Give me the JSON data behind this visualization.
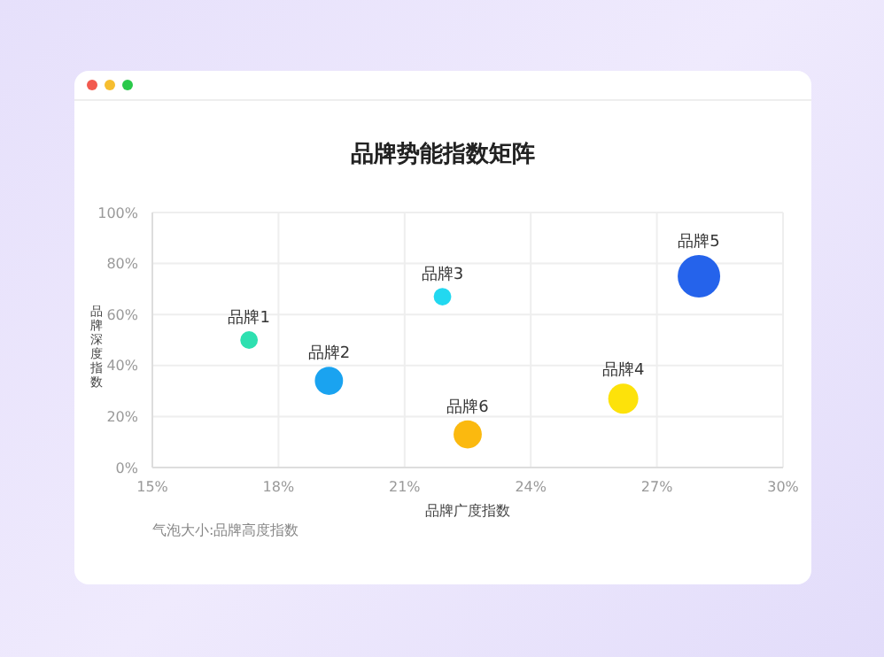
{
  "chart_data": {
    "type": "bubble",
    "title": "品牌势能指数矩阵",
    "xlabel": "品牌广度指数",
    "ylabel": "品牌深度指数",
    "annotations": [
      "气泡大小:品牌高度指数"
    ],
    "xlim": [
      15,
      30
    ],
    "xticks": [
      {
        "value": 15,
        "label": "15%"
      },
      {
        "value": 18,
        "label": "18%"
      },
      {
        "value": 21,
        "label": "21%"
      },
      {
        "value": 24,
        "label": "24%"
      },
      {
        "value": 27,
        "label": "27%"
      },
      {
        "value": 30,
        "label": "30%"
      }
    ],
    "ylim": [
      0,
      100
    ],
    "yticks": [
      {
        "value": 0,
        "label": "0%"
      },
      {
        "value": 20,
        "label": "20%"
      },
      {
        "value": 40,
        "label": "40%"
      },
      {
        "value": 60,
        "label": "60%"
      },
      {
        "value": 80,
        "label": "80%"
      },
      {
        "value": 100,
        "label": "100%"
      }
    ],
    "grid": true,
    "series": [
      {
        "name": "品牌1",
        "color": "#2ee0b0",
        "x": [
          17.3
        ],
        "values": [
          50
        ],
        "sizes": [
          0.17
        ]
      },
      {
        "name": "品牌2",
        "color": "#1aa3f0",
        "x": [
          19.2
        ],
        "values": [
          34
        ],
        "sizes": [
          0.44
        ]
      },
      {
        "name": "品牌3",
        "color": "#22d8f0",
        "x": [
          21.9
        ],
        "values": [
          67
        ],
        "sizes": [
          0.17
        ]
      },
      {
        "name": "品牌4",
        "color": "#fde20a",
        "x": [
          26.2
        ],
        "values": [
          27
        ],
        "sizes": [
          0.5
        ]
      },
      {
        "name": "品牌5",
        "color": "#2563eb",
        "x": [
          28
        ],
        "values": [
          75
        ],
        "sizes": [
          1
        ]
      },
      {
        "name": "品牌6",
        "color": "#fbb90f",
        "x": [
          22.5
        ],
        "values": [
          13
        ],
        "sizes": [
          0.44
        ]
      }
    ]
  }
}
